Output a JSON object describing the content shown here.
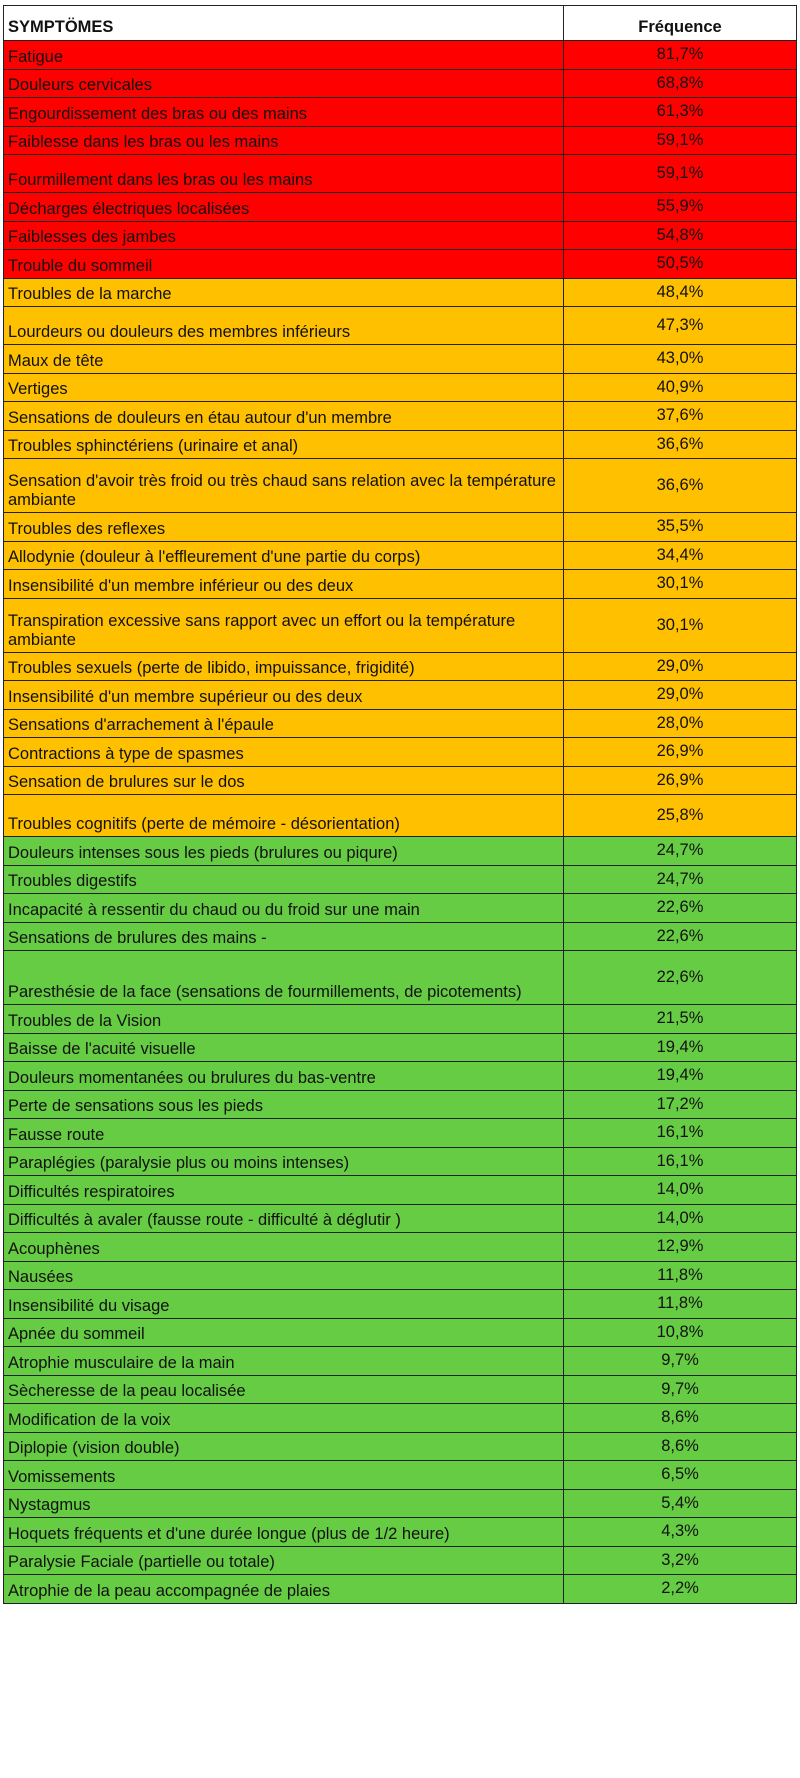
{
  "table": {
    "header": [
      "SYMPTÖMES",
      "Fréquence"
    ],
    "groups": [
      {
        "color": "#ff0000",
        "rows": [
          [
            "Fatigue",
            "81,7%"
          ],
          [
            "Douleurs cervicales",
            "68,8%"
          ],
          [
            "Engourdissement des bras ou des mains",
            "61,3%"
          ],
          [
            "Faiblesse dans les bras ou les mains",
            "59,1%"
          ],
          [
            "Fourmillement dans les bras ou les mains",
            "59,1%"
          ],
          [
            "Décharges électriques localisées",
            "55,9%"
          ],
          [
            "Faiblesses des jambes",
            "54,8%"
          ],
          [
            "Trouble du sommeil",
            "50,5%"
          ]
        ]
      },
      {
        "color": "#ffc000",
        "rows": [
          [
            "Troubles de la marche",
            "48,4%"
          ],
          [
            "Lourdeurs ou douleurs des membres inférieurs",
            "47,3%"
          ],
          [
            "Maux de tête",
            "43,0%"
          ],
          [
            "Vertiges",
            "40,9%"
          ],
          [
            "Sensations de douleurs en étau autour d'un membre",
            "37,6%"
          ],
          [
            "Troubles sphinctériens (urinaire et anal)",
            "36,6%"
          ],
          [
            "Sensation d'avoir très froid ou très chaud sans relation avec la température ambiante",
            "36,6%"
          ],
          [
            "Troubles des reflexes",
            "35,5%"
          ],
          [
            "Allodynie (douleur à l'effleurement d'une partie du corps)",
            "34,4%"
          ],
          [
            "Insensibilité d'un membre inférieur ou des deux",
            "30,1%"
          ],
          [
            "Transpiration excessive sans rapport avec un effort ou la température ambiante",
            "30,1%"
          ],
          [
            "Troubles sexuels (perte de libido, impuissance, frigidité)",
            "29,0%"
          ],
          [
            "Insensibilité d'un membre supérieur ou des deux",
            "29,0%"
          ],
          [
            "Sensations d'arrachement à l'épaule",
            "28,0%"
          ],
          [
            "Contractions à type de spasmes",
            "26,9%"
          ],
          [
            "Sensation de brulures sur le dos",
            "26,9%"
          ],
          [
            "Troubles cognitifs (perte de mémoire - désorientation)",
            "25,8%"
          ]
        ]
      },
      {
        "color": "#66cc44",
        "rows": [
          [
            "Douleurs intenses sous les pieds (brulures ou piqure)",
            "24,7%"
          ],
          [
            "Troubles digestifs",
            "24,7%"
          ],
          [
            "Incapacité à ressentir du chaud ou du froid sur une main",
            "22,6%"
          ],
          [
            "Sensations de brulures des mains -",
            "22,6%"
          ],
          [
            "Paresthésie de la face (sensations de fourmillements, de picotements)",
            "22,6%"
          ],
          [
            "Troubles de la Vision",
            "21,5%"
          ],
          [
            "Baisse de l'acuité visuelle",
            "19,4%"
          ],
          [
            "Douleurs momentanées ou brulures du bas-ventre",
            "19,4%"
          ],
          [
            "Perte de sensations sous les pieds",
            "17,2%"
          ],
          [
            "Fausse route",
            "16,1%"
          ],
          [
            "Paraplégies (paralysie plus ou moins intenses)",
            "16,1%"
          ],
          [
            "Difficultés respiratoires",
            "14,0%"
          ],
          [
            "Difficultés à avaler (fausse route - difficulté à déglutir )",
            "14,0%"
          ],
          [
            "Acouphènes",
            "12,9%"
          ],
          [
            "Nausées",
            "11,8%"
          ],
          [
            "Insensibilité du visage",
            "11,8%"
          ],
          [
            "Apnée du sommeil",
            "10,8%"
          ],
          [
            "Atrophie musculaire de la main",
            "9,7%"
          ],
          [
            "Sècheresse de la peau localisée",
            "9,7%"
          ],
          [
            "Modification de la voix",
            "8,6%"
          ],
          [
            "Diplopie (vision double)",
            "8,6%"
          ],
          [
            "Vomissements",
            "6,5%"
          ],
          [
            "Nystagmus",
            "5,4%"
          ],
          [
            "Hoquets fréquents et d'une durée longue (plus de 1/2 heure)",
            "4,3%"
          ],
          [
            "Paralysie Faciale (partielle ou totale)",
            "3,2%"
          ],
          [
            "Atrophie de la peau accompagnée de plaies",
            "2,2%"
          ]
        ]
      }
    ]
  }
}
